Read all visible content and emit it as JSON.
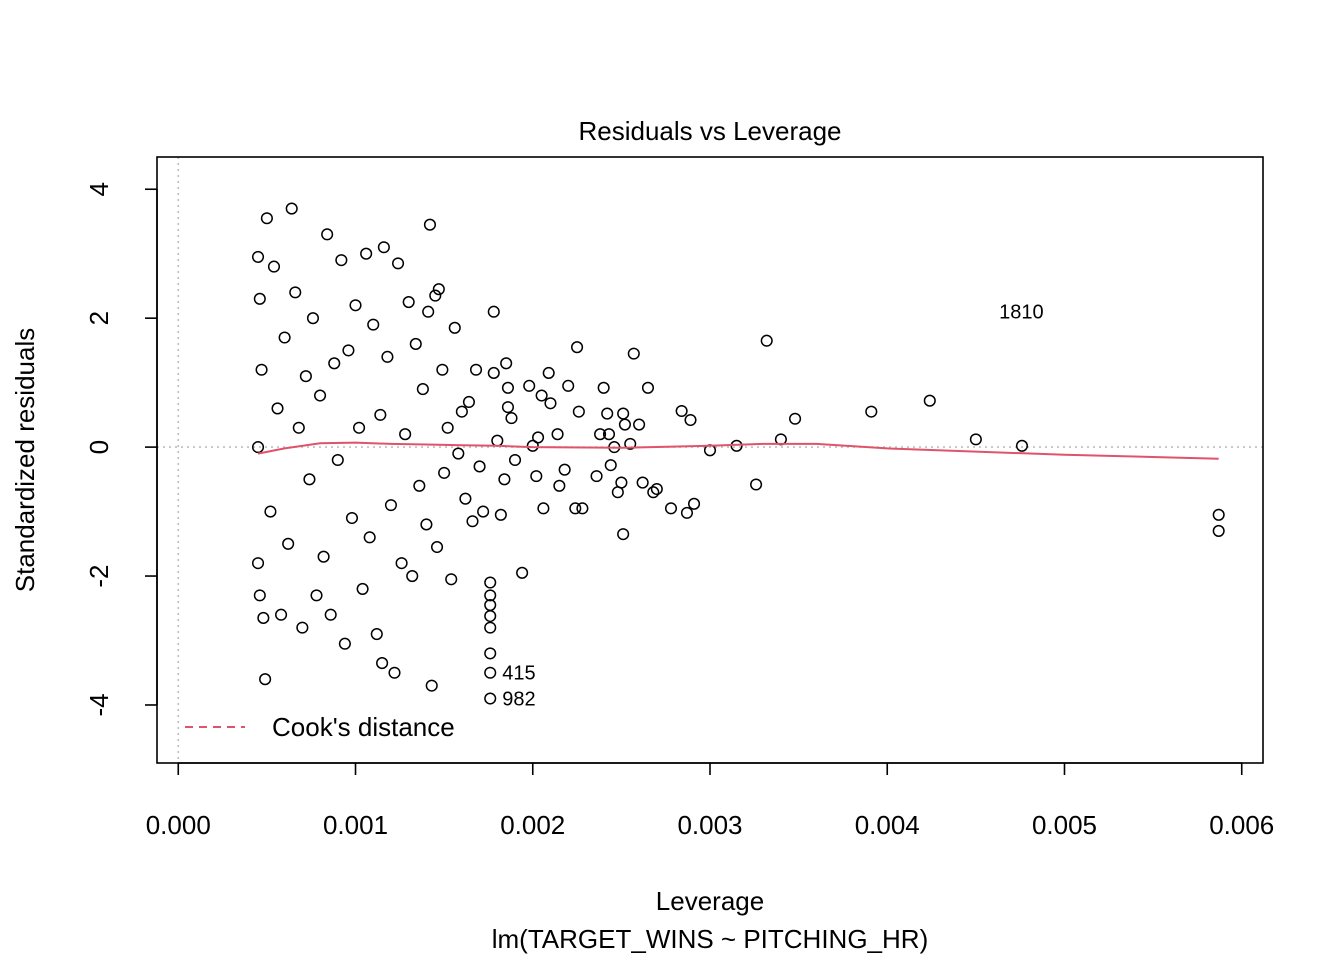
{
  "chart_data": {
    "type": "scatter",
    "title": "Residuals vs Leverage",
    "xlabel": "Leverage",
    "subtitle": "lm(TARGET_WINS ~ PITCHING_HR)",
    "ylabel": "Standardized residuals",
    "xlim": [
      -0.00012,
      0.00612
    ],
    "ylim": [
      -4.9,
      4.5
    ],
    "x_ticks": [
      "0.000",
      "0.001",
      "0.002",
      "0.003",
      "0.004",
      "0.005",
      "0.006"
    ],
    "x_tick_values": [
      0,
      0.001,
      0.002,
      0.003,
      0.004,
      0.005,
      0.006
    ],
    "y_ticks": [
      "-4",
      "-2",
      "0",
      "2",
      "4"
    ],
    "y_tick_values": [
      -4,
      -2,
      0,
      2,
      4
    ],
    "reference_lines": {
      "x": 0,
      "y": 0,
      "style": "dotted",
      "color": "#bebebe"
    },
    "legend": {
      "label": "Cook's distance",
      "position": "bottom-left",
      "line_style": "dashed",
      "color": "#df536b"
    },
    "smooth_color": "#df536b",
    "smooth_line": [
      [
        0.00045,
        -0.1
      ],
      [
        0.0006,
        -0.02
      ],
      [
        0.0008,
        0.06
      ],
      [
        0.001,
        0.07
      ],
      [
        0.0012,
        0.05
      ],
      [
        0.0014,
        0.04
      ],
      [
        0.0016,
        0.03
      ],
      [
        0.0018,
        0.02
      ],
      [
        0.002,
        0.0
      ],
      [
        0.0025,
        -0.01
      ],
      [
        0.003,
        0.02
      ],
      [
        0.0033,
        0.05
      ],
      [
        0.0036,
        0.05
      ],
      [
        0.004,
        -0.02
      ],
      [
        0.0045,
        -0.07
      ],
      [
        0.005,
        -0.12
      ],
      [
        0.00587,
        -0.18
      ]
    ],
    "labeled_points": [
      {
        "label": "1810",
        "x": 0.00495,
        "y": 2.1,
        "label_side": "left"
      },
      {
        "label": "415",
        "x": 0.00176,
        "y": -3.5,
        "label_side": "right"
      },
      {
        "label": "982",
        "x": 0.00176,
        "y": -3.9,
        "label_side": "right"
      }
    ],
    "points": [
      [
        0.00587,
        -1.05
      ],
      [
        0.00587,
        -1.3
      ],
      [
        0.00476,
        0.02
      ],
      [
        0.0045,
        0.12
      ],
      [
        0.00424,
        0.72
      ],
      [
        0.00391,
        0.55
      ],
      [
        0.00348,
        0.44
      ],
      [
        0.0034,
        0.12
      ],
      [
        0.00332,
        1.65
      ],
      [
        0.00326,
        -0.58
      ],
      [
        0.00315,
        0.02
      ],
      [
        0.003,
        -0.05
      ],
      [
        0.00291,
        -0.88
      ],
      [
        0.00289,
        0.42
      ],
      [
        0.00287,
        -1.02
      ],
      [
        0.00284,
        0.56
      ],
      [
        0.00278,
        -0.95
      ],
      [
        0.0027,
        -0.65
      ],
      [
        0.00268,
        -0.7
      ],
      [
        0.00265,
        0.92
      ],
      [
        0.00262,
        -0.55
      ],
      [
        0.0026,
        0.35
      ],
      [
        0.00257,
        1.45
      ],
      [
        0.00255,
        0.05
      ],
      [
        0.00252,
        0.35
      ],
      [
        0.00251,
        0.52
      ],
      [
        0.0025,
        -0.55
      ],
      [
        0.00251,
        -1.35
      ],
      [
        0.00248,
        -0.7
      ],
      [
        0.00246,
        0.0
      ],
      [
        0.00244,
        -0.28
      ],
      [
        0.00243,
        0.2
      ],
      [
        0.00242,
        0.52
      ],
      [
        0.0024,
        0.92
      ],
      [
        0.00238,
        0.2
      ],
      [
        0.00236,
        -0.45
      ],
      [
        0.00228,
        -0.95
      ],
      [
        0.00226,
        0.55
      ],
      [
        0.00225,
        1.55
      ],
      [
        0.00224,
        -0.95
      ],
      [
        0.0022,
        0.95
      ],
      [
        0.00218,
        -0.35
      ],
      [
        0.00215,
        -0.6
      ],
      [
        0.00214,
        0.2
      ],
      [
        0.0021,
        0.68
      ],
      [
        0.00209,
        1.15
      ],
      [
        0.00206,
        -0.95
      ],
      [
        0.00205,
        0.8
      ],
      [
        0.00203,
        0.15
      ],
      [
        0.00202,
        -0.45
      ],
      [
        0.002,
        0.02
      ],
      [
        0.00198,
        0.95
      ],
      [
        0.00194,
        -1.95
      ],
      [
        0.0019,
        -0.2
      ],
      [
        0.00188,
        0.45
      ],
      [
        0.00186,
        0.62
      ],
      [
        0.00186,
        0.92
      ],
      [
        0.00185,
        1.3
      ],
      [
        0.00184,
        -0.5
      ],
      [
        0.00182,
        -1.05
      ],
      [
        0.0018,
        0.1
      ],
      [
        0.00178,
        1.15
      ],
      [
        0.00178,
        2.1
      ],
      [
        0.00176,
        -2.1
      ],
      [
        0.00176,
        -2.3
      ],
      [
        0.00176,
        -2.45
      ],
      [
        0.00176,
        -2.62
      ],
      [
        0.00176,
        -2.8
      ],
      [
        0.00176,
        -3.2
      ],
      [
        0.00176,
        -3.5
      ],
      [
        0.00176,
        -3.9
      ],
      [
        0.00172,
        -1.0
      ],
      [
        0.0017,
        -0.3
      ],
      [
        0.00168,
        1.2
      ],
      [
        0.00166,
        -1.15
      ],
      [
        0.00164,
        0.7
      ],
      [
        0.00162,
        -0.8
      ],
      [
        0.0016,
        0.55
      ],
      [
        0.00158,
        -0.1
      ],
      [
        0.00156,
        1.85
      ],
      [
        0.00154,
        -2.05
      ],
      [
        0.00152,
        0.3
      ],
      [
        0.0015,
        -0.4
      ],
      [
        0.00149,
        1.2
      ],
      [
        0.00147,
        2.45
      ],
      [
        0.00146,
        -1.55
      ],
      [
        0.00145,
        2.35
      ],
      [
        0.00142,
        3.45
      ],
      [
        0.00143,
        -3.7
      ],
      [
        0.00141,
        2.1
      ],
      [
        0.0014,
        -1.2
      ],
      [
        0.00138,
        0.9
      ],
      [
        0.00136,
        -0.6
      ],
      [
        0.00134,
        1.6
      ],
      [
        0.00132,
        -2.0
      ],
      [
        0.0013,
        2.25
      ],
      [
        0.00128,
        0.2
      ],
      [
        0.00126,
        -1.8
      ],
      [
        0.00124,
        2.85
      ],
      [
        0.00122,
        -3.5
      ],
      [
        0.0012,
        -0.9
      ],
      [
        0.00118,
        1.4
      ],
      [
        0.00116,
        3.1
      ],
      [
        0.00115,
        -3.35
      ],
      [
        0.00114,
        0.5
      ],
      [
        0.00112,
        -2.9
      ],
      [
        0.0011,
        1.9
      ],
      [
        0.00108,
        -1.4
      ],
      [
        0.00106,
        3.0
      ],
      [
        0.00104,
        -2.2
      ],
      [
        0.00102,
        0.3
      ],
      [
        0.001,
        2.2
      ],
      [
        0.00098,
        -1.1
      ],
      [
        0.00096,
        1.5
      ],
      [
        0.00094,
        -3.05
      ],
      [
        0.00092,
        2.9
      ],
      [
        0.0009,
        -0.2
      ],
      [
        0.00088,
        1.3
      ],
      [
        0.00086,
        -2.6
      ],
      [
        0.00084,
        3.3
      ],
      [
        0.00082,
        -1.7
      ],
      [
        0.0008,
        0.8
      ],
      [
        0.00078,
        -2.3
      ],
      [
        0.00076,
        2.0
      ],
      [
        0.00074,
        -0.5
      ],
      [
        0.00072,
        1.1
      ],
      [
        0.0007,
        -2.8
      ],
      [
        0.00068,
        0.3
      ],
      [
        0.00066,
        2.4
      ],
      [
        0.00064,
        3.7
      ],
      [
        0.00062,
        -1.5
      ],
      [
        0.0006,
        1.7
      ],
      [
        0.00058,
        -2.6
      ],
      [
        0.00056,
        0.6
      ],
      [
        0.00054,
        2.8
      ],
      [
        0.00052,
        -1.0
      ],
      [
        0.0005,
        3.55
      ],
      [
        0.00049,
        -3.6
      ],
      [
        0.00048,
        -2.65
      ],
      [
        0.00047,
        1.2
      ],
      [
        0.00046,
        2.3
      ],
      [
        0.00046,
        -2.3
      ],
      [
        0.00045,
        2.95
      ],
      [
        0.00045,
        0.0
      ],
      [
        0.00045,
        -1.8
      ]
    ]
  }
}
